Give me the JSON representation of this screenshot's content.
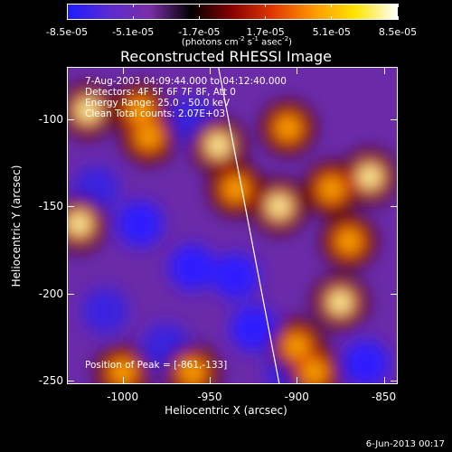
{
  "colorbar": {
    "labels": [
      "-8.5e-05",
      "-5.1e-05",
      "-1.7e-05",
      "1.7e-05",
      "5.1e-05",
      "8.5e-05"
    ],
    "units_base": "(photons cm",
    "units_exp1": "-2",
    "units_mid": " s",
    "units_exp2": "-1",
    "units_mid2": " asec",
    "units_exp3": "-2",
    "units_end": ")",
    "colors": [
      "#1c1cff",
      "#5a2bd0",
      "#7a2ea6",
      "#000000",
      "#8a0000",
      "#e23a00",
      "#ff9a00",
      "#ffe500",
      "#ffffff"
    ]
  },
  "title": "Reconstructed RHESSI Image",
  "info_lines": [
    "7-Aug-2003 04:09:44.000 to 04:12:40.000",
    "Detectors: 4F 5F 6F 7F 8F, Att 0",
    "Energy Range: 25.0 - 50.0 keV",
    "Clean   Total counts: 2.07E+03"
  ],
  "peak_text": "Position of Peak = [-861,-133]",
  "axes": {
    "xlabel": "Heliocentric X (arcsec)",
    "ylabel": "Heliocentric Y (arcsec)",
    "xticks": [
      "-1000",
      "-950",
      "-900",
      "-850"
    ],
    "yticks": [
      "-100",
      "-150",
      "-200",
      "-250"
    ],
    "x_tick_values": [
      -1000,
      -950,
      -900,
      -850
    ],
    "y_tick_values": [
      -100,
      -150,
      -200,
      -250
    ],
    "x_range": [
      -1032,
      -842
    ],
    "y_range": [
      -252,
      -70
    ]
  },
  "limb_line": {
    "visible": true,
    "color": "#ffffff",
    "from": [
      -945,
      -70
    ],
    "to": [
      -910,
      -252
    ]
  },
  "image_blobs": {
    "bright": [
      [
        -1020,
        -95
      ],
      [
        -990,
        -95
      ],
      [
        -985,
        -110
      ],
      [
        -945,
        -115
      ],
      [
        -905,
        -105
      ],
      [
        -935,
        -140
      ],
      [
        -910,
        -150
      ],
      [
        -880,
        -140
      ],
      [
        -870,
        -170
      ],
      [
        -875,
        -205
      ],
      [
        -900,
        -230
      ],
      [
        -890,
        -245
      ],
      [
        -858,
        -133
      ],
      [
        -960,
        -245
      ],
      [
        -1000,
        -245
      ],
      [
        -1025,
        -160
      ]
    ],
    "dark": [
      [
        -1015,
        -140
      ],
      [
        -990,
        -160
      ],
      [
        -1010,
        -210
      ],
      [
        -960,
        -185
      ],
      [
        -975,
        -230
      ],
      [
        -935,
        -190
      ],
      [
        -905,
        -245
      ],
      [
        -860,
        -240
      ],
      [
        -960,
        -100
      ],
      [
        -925,
        -220
      ]
    ]
  },
  "timestamp": "6-Jun-2013 00:17"
}
